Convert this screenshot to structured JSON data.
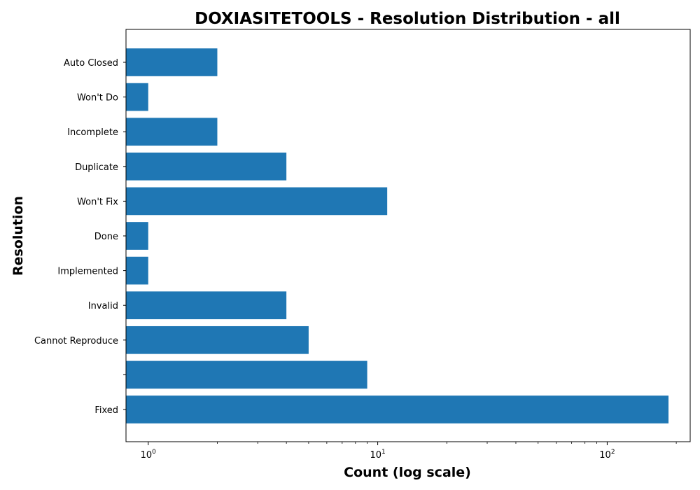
{
  "chart_data": {
    "type": "bar",
    "orientation": "horizontal",
    "title": "DOXIASITETOOLS - Resolution Distribution - all",
    "xlabel": "Count (log scale)",
    "ylabel": "Resolution",
    "x_scale": "log",
    "xlim": [
      0.8,
      230
    ],
    "x_ticks": [
      {
        "value": 1,
        "base": "10",
        "exp": "0"
      },
      {
        "value": 10,
        "base": "10",
        "exp": "1"
      },
      {
        "value": 100,
        "base": "10",
        "exp": "2"
      }
    ],
    "categories": [
      "Fixed",
      "",
      "Cannot Reproduce",
      "Invalid",
      "Implemented",
      "Done",
      "Won't Fix",
      "Duplicate",
      "Incomplete",
      "Won't Do",
      "Auto Closed"
    ],
    "values": [
      185,
      9,
      5,
      4,
      1,
      1,
      11,
      4,
      2,
      1,
      2
    ],
    "bar_color": "#1f77b4",
    "grid": false,
    "legend": "none"
  }
}
